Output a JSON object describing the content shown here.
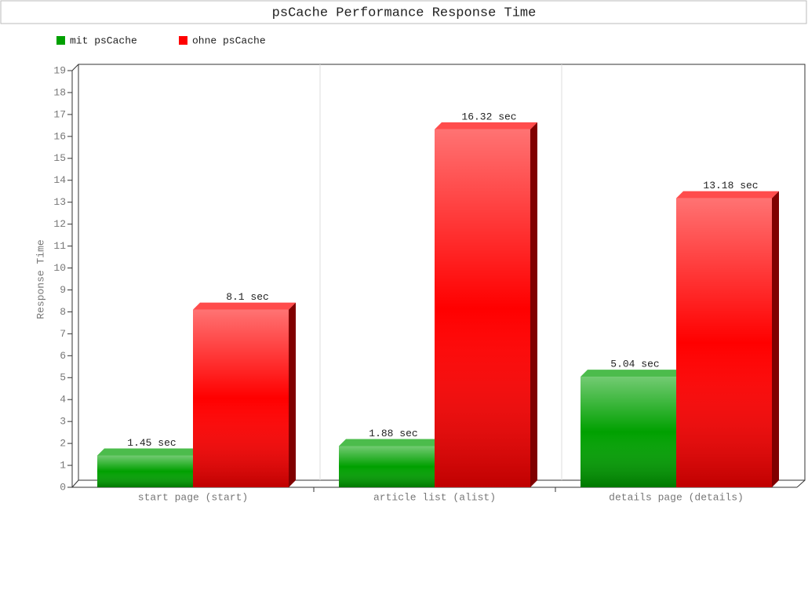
{
  "chart_data": {
    "type": "bar3d",
    "title": "psCache Performance Response Time",
    "y_label": "Response Time",
    "categories": [
      "start page (start)",
      "article list (alist)",
      "details page (details)"
    ],
    "series": [
      {
        "name": "mit psCache",
        "color": "#00a000",
        "values": [
          1.45,
          1.88,
          5.04
        ],
        "value_labels": [
          "1.45 sec",
          "1.88 sec",
          "5.04 sec"
        ]
      },
      {
        "name": "ohne psCache",
        "color": "#ff0000",
        "values": [
          8.1,
          16.32,
          13.18
        ],
        "value_labels": [
          "8.1 sec",
          "16.32 sec",
          "13.18 sec"
        ]
      }
    ],
    "ylim": [
      0,
      19
    ],
    "yticks": [
      0,
      1,
      2,
      3,
      4,
      5,
      6,
      7,
      8,
      9,
      10,
      11,
      12,
      13,
      14,
      15,
      16,
      17,
      18,
      19
    ],
    "grid": false
  }
}
